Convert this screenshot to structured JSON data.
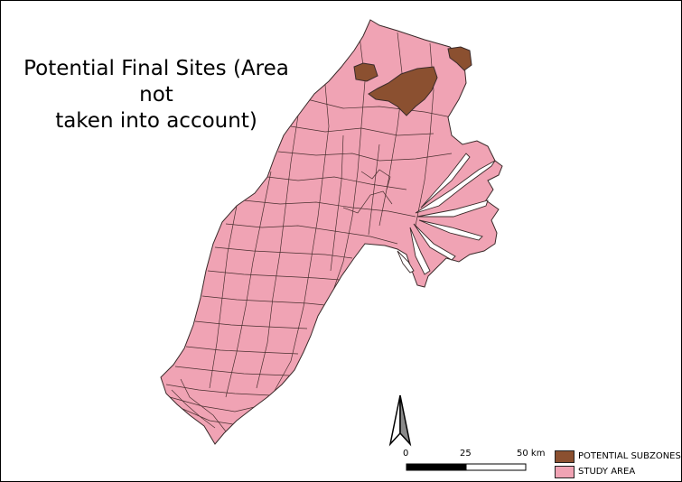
{
  "title": {
    "line1": "Potential Final Sites (Area not",
    "line2": "taken into account)"
  },
  "colors": {
    "study_area": "#f0a3b4",
    "potential_subzones": "#8b5030",
    "boundary": "#3a2a2a"
  },
  "north_arrow": {
    "icon": "north-arrow-icon"
  },
  "scale_bar": {
    "label_0": "0",
    "label_mid": "25",
    "label_max": "50 km"
  },
  "legend": {
    "items": [
      {
        "label": "POTENTIAL SUBZONES",
        "color": "#8b5030"
      },
      {
        "label": "STUDY AREA",
        "color": "#f0a3b4"
      }
    ]
  }
}
